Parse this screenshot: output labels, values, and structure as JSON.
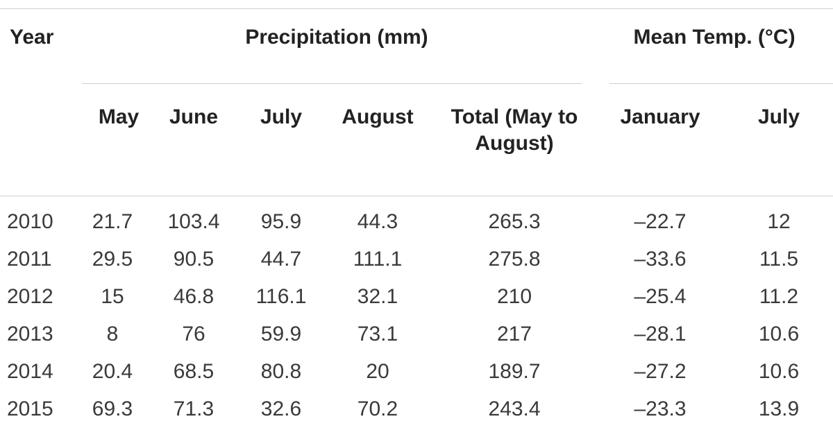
{
  "table": {
    "header_year": "Year",
    "group_precip": "Precipitation (mm)",
    "group_temp": "Mean Temp. (°C)",
    "sub_headers": [
      "May",
      "June",
      "July",
      "August",
      "Total (May to August)",
      "January",
      "July"
    ],
    "rows": [
      {
        "year": "2010",
        "may": "21.7",
        "june": "103.4",
        "july": "95.9",
        "august": "44.3",
        "total": "265.3",
        "january": "–22.7",
        "july_t": "12"
      },
      {
        "year": "2011",
        "may": "29.5",
        "june": "90.5",
        "july": "44.7",
        "august": "111.1",
        "total": "275.8",
        "january": "–33.6",
        "july_t": "11.5"
      },
      {
        "year": "2012",
        "may": "15",
        "june": "46.8",
        "july": "116.1",
        "august": "32.1",
        "total": "210",
        "january": "–25.4",
        "july_t": "11.2"
      },
      {
        "year": "2013",
        "may": "8",
        "june": "76",
        "july": "59.9",
        "august": "73.1",
        "total": "217",
        "january": "–28.1",
        "july_t": "10.6"
      },
      {
        "year": "2014",
        "may": "20.4",
        "june": "68.5",
        "july": "80.8",
        "august": "20",
        "total": "189.7",
        "january": "–27.2",
        "july_t": "10.6"
      },
      {
        "year": "2015",
        "may": "69.3",
        "june": "71.3",
        "july": "32.6",
        "august": "70.2",
        "total": "243.4",
        "january": "–23.3",
        "july_t": "13.9"
      }
    ]
  }
}
